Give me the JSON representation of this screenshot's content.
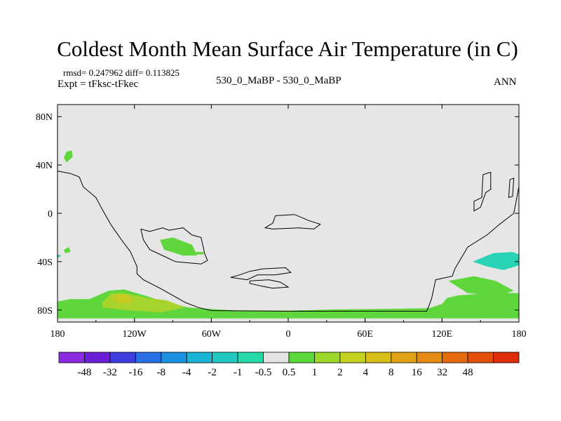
{
  "chart_data": {
    "type": "heatmap",
    "title": "Coldest Month Mean Surface Air Temperature (in C)",
    "stats_text": "rmsd= 0.247962  diff= 0.113825",
    "left_label": "Expt = tFksc-tFkec",
    "center_label": "530_0_MaBP - 530_0_MaBP",
    "right_label": "ANN",
    "x_ticks": [
      {
        "lon": -180,
        "label": "180"
      },
      {
        "lon": -120,
        "label": "120W"
      },
      {
        "lon": -60,
        "label": "60W"
      },
      {
        "lon": 0,
        "label": "0"
      },
      {
        "lon": 60,
        "label": "60E"
      },
      {
        "lon": 120,
        "label": "120E"
      },
      {
        "lon": 180,
        "label": "180"
      }
    ],
    "y_ticks": [
      {
        "lat": 80,
        "label": "80N"
      },
      {
        "lat": 40,
        "label": "40N"
      },
      {
        "lat": 0,
        "label": "0"
      },
      {
        "lat": -40,
        "label": "40S"
      },
      {
        "lat": -80,
        "label": "80S"
      }
    ],
    "xlim": [
      -180,
      180
    ],
    "ylim": [
      -90,
      90
    ],
    "colorbar": {
      "colors": [
        "#8a2be2",
        "#6a1fd6",
        "#3d3de0",
        "#2a6fe6",
        "#1e90e0",
        "#19b4d6",
        "#22c9c0",
        "#26d9a8",
        "#e4e4e4",
        "#5bd83a",
        "#9cd82a",
        "#c4d220",
        "#d8bf18",
        "#e0a315",
        "#e58a10",
        "#e56a0c",
        "#e34e0a",
        "#e02c08"
      ],
      "labels": [
        "-48",
        "-32",
        "-16",
        "-8",
        "-4",
        "-2",
        "-1",
        "-0.5",
        "0.5",
        "1",
        "2",
        "4",
        "8",
        "16",
        "32",
        "48"
      ]
    },
    "colors": {
      "background": "#e6e6e6",
      "light_green": "#5ed63c",
      "yellow_green": "#a6d42c",
      "yellow": "#c8cc22",
      "cyan": "#29d4b4",
      "coast": "#000000"
    },
    "regions": [
      {
        "name": "antarctic-band",
        "level": "1",
        "lonlat": [
          [
            -180,
            -87
          ],
          [
            -180,
            -73
          ],
          [
            -170,
            -71
          ],
          [
            -155,
            -71
          ],
          [
            -140,
            -64
          ],
          [
            -128,
            -63
          ],
          [
            -112,
            -68
          ],
          [
            -100,
            -72
          ],
          [
            -78,
            -78
          ],
          [
            -40,
            -80.5
          ],
          [
            0,
            -80.5
          ],
          [
            40,
            -79.5
          ],
          [
            80,
            -79
          ],
          [
            110,
            -78.5
          ],
          [
            120,
            -75
          ],
          [
            124,
            -70
          ],
          [
            132,
            -68
          ],
          [
            155,
            -66
          ],
          [
            180,
            -66
          ],
          [
            180,
            -87
          ]
        ]
      },
      {
        "name": "yellow-green-patch",
        "level": "2",
        "lonlat": [
          [
            -145,
            -74
          ],
          [
            -138,
            -66
          ],
          [
            -128,
            -66
          ],
          [
            -110,
            -70
          ],
          [
            -95,
            -72
          ],
          [
            -80,
            -78
          ],
          [
            -100,
            -82
          ],
          [
            -128,
            -80
          ],
          [
            -145,
            -78
          ]
        ]
      },
      {
        "name": "yellow-patch",
        "level": "4",
        "lonlat": [
          [
            -138,
            -71
          ],
          [
            -133,
            -67
          ],
          [
            -124,
            -68
          ],
          [
            -120,
            -73
          ],
          [
            -130,
            -75
          ]
        ]
      },
      {
        "name": "north-pacific-blob",
        "level": "1",
        "lonlat": [
          [
            -175,
            46
          ],
          [
            -173,
            51
          ],
          [
            -169,
            52
          ],
          [
            -168,
            47
          ],
          [
            -173,
            42
          ]
        ]
      },
      {
        "name": "south-atlantic-blob",
        "level": "1",
        "lonlat": [
          [
            -100,
            -22
          ],
          [
            -90,
            -20
          ],
          [
            -75,
            -26
          ],
          [
            -71,
            -35
          ],
          [
            -82,
            -35
          ],
          [
            -97,
            -30
          ]
        ]
      },
      {
        "name": "indian-ocean-blob",
        "level": "1",
        "lonlat": [
          [
            125,
            -56
          ],
          [
            145,
            -52
          ],
          [
            162,
            -56
          ],
          [
            176,
            -64
          ],
          [
            165,
            -68
          ],
          [
            140,
            -66
          ]
        ]
      },
      {
        "name": "west-ocean-speck",
        "level": "1",
        "lonlat": [
          [
            -175,
            -30
          ],
          [
            -171,
            -28
          ],
          [
            -170,
            -32
          ],
          [
            -174,
            -33
          ]
        ]
      },
      {
        "name": "australia-cyan",
        "level": "-0.5",
        "lonlat": [
          [
            144,
            -40
          ],
          [
            160,
            -33
          ],
          [
            175,
            -32
          ],
          [
            180,
            -34
          ],
          [
            180,
            -43
          ],
          [
            168,
            -47
          ],
          [
            155,
            -44
          ]
        ]
      },
      {
        "name": "far-west-cyan",
        "level": "-0.5",
        "lonlat": [
          [
            -180,
            -34
          ],
          [
            -177,
            -35
          ],
          [
            -180,
            -37
          ]
        ]
      },
      {
        "name": "south-speck",
        "level": "1",
        "lonlat": [
          [
            -72,
            -32
          ],
          [
            -66,
            -32
          ],
          [
            -66,
            -34
          ],
          [
            -72,
            -34
          ]
        ]
      }
    ],
    "coastlines": [
      [
        [
          -180,
          35
        ],
        [
          -170,
          33
        ],
        [
          -163,
          30
        ],
        [
          -160,
          22
        ],
        [
          -150,
          13
        ],
        [
          -145,
          3
        ],
        [
          -138,
          -10
        ],
        [
          -130,
          -22
        ],
        [
          -123,
          -32
        ],
        [
          -118,
          -44
        ],
        [
          -118,
          -50
        ],
        [
          -113,
          -55
        ],
        [
          -100,
          -62
        ],
        [
          -90,
          -68
        ],
        [
          -80,
          -74
        ],
        [
          -70,
          -78
        ],
        [
          -60,
          -80.5
        ],
        [
          0,
          -81
        ],
        [
          60,
          -81
        ],
        [
          108,
          -81
        ],
        [
          110,
          -76
        ],
        [
          112,
          -70
        ],
        [
          115,
          -55
        ],
        [
          128,
          -52
        ],
        [
          130,
          -46
        ],
        [
          140,
          -28
        ],
        [
          155,
          -18
        ],
        [
          165,
          -9
        ],
        [
          176,
          0
        ],
        [
          180,
          22
        ],
        [
          180,
          35
        ]
      ],
      [
        [
          -115,
          -13
        ],
        [
          -108,
          -15
        ],
        [
          -98,
          -12
        ],
        [
          -93,
          -14
        ],
        [
          -82,
          -12
        ],
        [
          -75,
          -18
        ],
        [
          -68,
          -20
        ],
        [
          -65,
          -34
        ],
        [
          -63,
          -39
        ],
        [
          -68,
          -42
        ],
        [
          -88,
          -40
        ],
        [
          -96,
          -36
        ],
        [
          -108,
          -30
        ],
        [
          -113,
          -22
        ],
        [
          -115,
          -13
        ]
      ],
      [
        [
          -10,
          -2
        ],
        [
          5,
          -1
        ],
        [
          16,
          -6
        ],
        [
          25,
          -9
        ],
        [
          20,
          -13
        ],
        [
          8,
          -12
        ],
        [
          -12,
          -13
        ],
        [
          -18,
          -12
        ],
        [
          -12,
          -8
        ],
        [
          -10,
          -2
        ]
      ],
      [
        [
          -20,
          -46
        ],
        [
          -2,
          -45
        ],
        [
          2,
          -49
        ],
        [
          -10,
          -51
        ],
        [
          -24,
          -51
        ],
        [
          -32,
          -55
        ],
        [
          -45,
          -53
        ],
        [
          -38,
          -51
        ],
        [
          -30,
          -48
        ],
        [
          -20,
          -46
        ]
      ],
      [
        [
          -30,
          -56
        ],
        [
          -15,
          -55
        ],
        [
          -6,
          -57
        ],
        [
          0,
          -61
        ],
        [
          -12,
          -62
        ],
        [
          -22,
          -60
        ],
        [
          -30,
          -58
        ],
        [
          -30,
          -56
        ]
      ],
      [
        [
          152,
          32
        ],
        [
          158,
          34
        ],
        [
          158,
          20
        ],
        [
          154,
          17
        ],
        [
          150,
          5
        ],
        [
          145,
          2
        ],
        [
          145,
          10
        ],
        [
          151,
          13
        ],
        [
          152,
          32
        ]
      ],
      [
        [
          173,
          28
        ],
        [
          176,
          29
        ],
        [
          175,
          14
        ],
        [
          172,
          13
        ],
        [
          173,
          28
        ]
      ]
    ]
  }
}
